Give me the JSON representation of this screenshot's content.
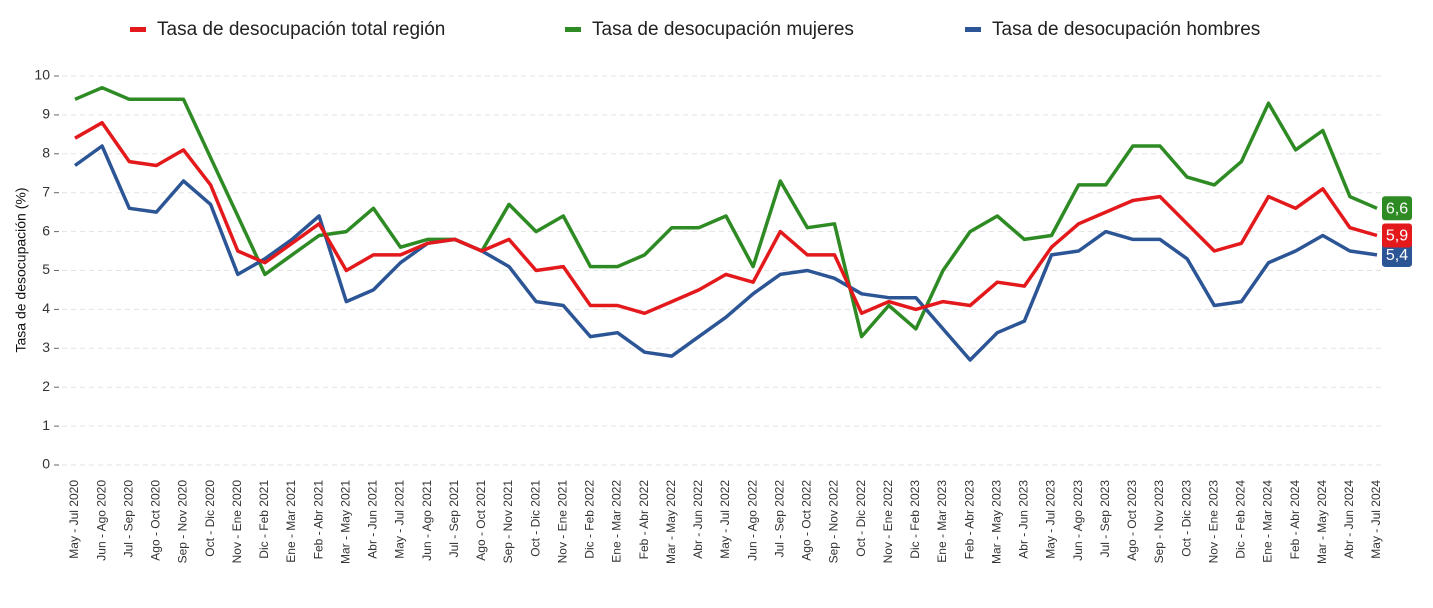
{
  "chart_data": {
    "type": "line",
    "y_label": "Tasa de desocupación (%)",
    "categories": [
      "May - Jul 2020",
      "Jun - Ago 2020",
      "Jul - Sep 2020",
      "Ago - Oct 2020",
      "Sep - Nov 2020",
      "Oct - Dic 2020",
      "Nov - Ene 2020",
      "Dic - Feb 2021",
      "Ene - Mar 2021",
      "Feb - Abr 2021",
      "Mar - May 2021",
      "Abr - Jun 2021",
      "May - Jul 2021",
      "Jun - Ago 2021",
      "Jul - Sep 2021",
      "Ago - Oct 2021",
      "Sep - Nov 2021",
      "Oct - Dic 2021",
      "Nov - Ene 2021",
      "Dic - Feb 2022",
      "Ene - Mar 2022",
      "Feb - Abr 2022",
      "Mar - May 2022",
      "Abr - Jun 2022",
      "May - Jul 2022",
      "Jun - Ago 2022",
      "Jul - Sep 2022",
      "Ago - Oct 2022",
      "Sep - Nov 2022",
      "Oct - Dic 2022",
      "Nov - Ene 2022",
      "Dic - Feb 2023",
      "Ene - Mar 2023",
      "Feb - Abr 2023",
      "Mar - May 2023",
      "Abr - Jun 2023",
      "May - Jul 2023",
      "Jun - Ago 2023",
      "Jul - Sep 2023",
      "Ago - Oct 2023",
      "Sep - Nov 2023",
      "Oct - Dic 2023",
      "Nov - Ene 2023",
      "Dic - Feb 2024",
      "Ene - Mar 2024",
      "Feb - Abr 2024",
      "Mar - May 2024",
      "Abr - Jun 2024",
      "May - Jul 2024"
    ],
    "series": [
      {
        "name": "Tasa de desocupación total región",
        "color": "#e3191c",
        "values": [
          8.4,
          8.8,
          7.8,
          7.7,
          8.1,
          7.2,
          5.5,
          5.2,
          5.7,
          6.2,
          5.0,
          5.4,
          5.4,
          5.7,
          5.8,
          5.5,
          5.8,
          5.0,
          5.1,
          4.1,
          4.1,
          3.9,
          4.2,
          4.5,
          4.9,
          4.7,
          6.0,
          5.4,
          5.4,
          3.9,
          4.2,
          4.0,
          4.2,
          4.1,
          4.7,
          4.6,
          5.6,
          6.2,
          6.5,
          6.8,
          6.9,
          6.2,
          5.5,
          5.7,
          6.9,
          6.6,
          7.1,
          6.1,
          5.9
        ],
        "value_labels": [
          null,
          null,
          null,
          null,
          null,
          null,
          null,
          null,
          null,
          null,
          null,
          null,
          null,
          null,
          null,
          null,
          null,
          null,
          null,
          null,
          null,
          null,
          null,
          null,
          null,
          null,
          null,
          null,
          null,
          null,
          null,
          null,
          null,
          null,
          null,
          null,
          null,
          null,
          null,
          null,
          null,
          null,
          null,
          null,
          null,
          null,
          null,
          null,
          "5,9"
        ]
      },
      {
        "name": "Tasa de desocupación mujeres",
        "color": "#2e8b24",
        "values": [
          9.4,
          9.7,
          9.4,
          9.4,
          9.4,
          7.9,
          6.4,
          4.9,
          5.4,
          5.9,
          6.0,
          6.6,
          5.6,
          5.8,
          5.8,
          5.5,
          6.7,
          6.0,
          6.4,
          5.1,
          5.1,
          5.4,
          6.1,
          6.1,
          6.4,
          5.1,
          7.3,
          6.1,
          6.2,
          3.3,
          4.1,
          3.5,
          5.0,
          6.0,
          6.4,
          5.8,
          5.9,
          7.2,
          7.2,
          8.2,
          8.2,
          7.4,
          7.2,
          7.8,
          9.3,
          8.1,
          8.6,
          6.9,
          6.6
        ],
        "value_labels": [
          null,
          null,
          null,
          null,
          null,
          null,
          null,
          null,
          null,
          null,
          null,
          null,
          null,
          null,
          null,
          null,
          null,
          null,
          null,
          null,
          null,
          null,
          null,
          null,
          null,
          null,
          null,
          null,
          null,
          null,
          null,
          null,
          null,
          null,
          null,
          null,
          null,
          null,
          null,
          null,
          null,
          null,
          null,
          null,
          null,
          null,
          null,
          null,
          "6,6"
        ]
      },
      {
        "name": "Tasa de desocupación hombres",
        "color": "#2c5596",
        "values": [
          7.7,
          8.2,
          6.6,
          6.5,
          7.3,
          6.7,
          4.9,
          5.3,
          5.8,
          6.4,
          4.2,
          4.5,
          5.2,
          5.7,
          5.8,
          5.5,
          5.1,
          4.2,
          4.1,
          3.3,
          3.4,
          2.9,
          2.8,
          3.3,
          3.8,
          4.4,
          4.9,
          5.0,
          4.8,
          4.4,
          4.3,
          4.3,
          3.5,
          2.7,
          3.4,
          3.7,
          5.4,
          5.5,
          6.0,
          5.8,
          5.8,
          5.3,
          4.1,
          4.2,
          5.2,
          5.5,
          5.9,
          5.5,
          5.4
        ],
        "value_labels": [
          null,
          null,
          null,
          null,
          null,
          null,
          null,
          null,
          null,
          null,
          null,
          null,
          null,
          null,
          null,
          null,
          null,
          null,
          null,
          null,
          null,
          null,
          null,
          null,
          null,
          null,
          null,
          null,
          null,
          null,
          null,
          null,
          null,
          null,
          null,
          null,
          null,
          null,
          null,
          null,
          null,
          null,
          null,
          null,
          null,
          null,
          null,
          null,
          "5,4"
        ]
      }
    ],
    "ylim": [
      0,
      10
    ],
    "yticks": [
      0,
      1,
      2,
      3,
      4,
      5,
      6,
      7,
      8,
      9,
      10
    ],
    "grid": true,
    "legend": "top"
  }
}
